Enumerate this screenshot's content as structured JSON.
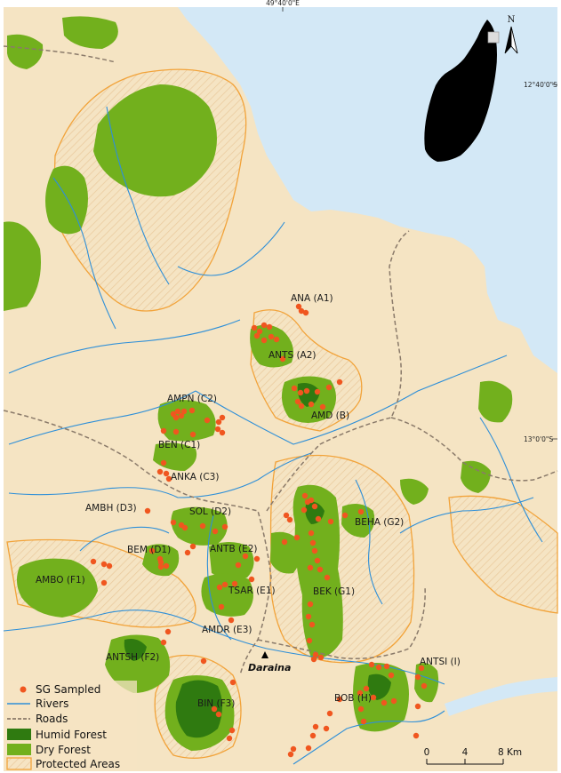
{
  "map": {
    "colors": {
      "land": "#f5e4c3",
      "sea": "#d3e8f6",
      "river": "#2e8fd8",
      "road": "#8a7a6a",
      "humid_forest": "#2f7a10",
      "dry_forest": "#72b01d",
      "protected_area": "#f2a33a",
      "sg_sampled": "#f0561f"
    },
    "coords": {
      "top_longitude": "49°40'0\"E",
      "right_lat_1": "12°40'0\"S",
      "right_lat_2": "13°0'0\"S"
    },
    "inset": {
      "north": "N"
    },
    "sites": [
      {
        "label": "ANA (A1)"
      },
      {
        "label": "ANTS (A2)"
      },
      {
        "label": "AMPN (C2)"
      },
      {
        "label": "AMD (B)"
      },
      {
        "label": "BEN (C1)"
      },
      {
        "label": "ANKA (C3)"
      },
      {
        "label": "AMBH (D3)"
      },
      {
        "label": "SOL (D2)"
      },
      {
        "label": "BEHA (G2)"
      },
      {
        "label": "BEM (D1)"
      },
      {
        "label": "ANTB (E2)"
      },
      {
        "label": "AMBO (F1)"
      },
      {
        "label": "TSAR (E1)"
      },
      {
        "label": "BEK (G1)"
      },
      {
        "label": "AMDR (E3)"
      },
      {
        "label": "ANTSH (F2)"
      },
      {
        "label": "ANTSI (I)"
      },
      {
        "label": "BOB (H)"
      },
      {
        "label": "BIN (F3)"
      }
    ],
    "town": {
      "label": "Daraina"
    },
    "legend": [
      {
        "label": "SG Sampled",
        "symbol": "dot"
      },
      {
        "label": "Rivers",
        "symbol": "line"
      },
      {
        "label": "Roads",
        "symbol": "dashed-line"
      },
      {
        "label": "Humid Forest",
        "symbol": "fill"
      },
      {
        "label": "Dry Forest",
        "symbol": "fill"
      },
      {
        "label": "Protected Areas",
        "symbol": "outline"
      }
    ],
    "scale_bar": {
      "ticks": [
        "0",
        "4",
        "8 Km"
      ]
    }
  }
}
